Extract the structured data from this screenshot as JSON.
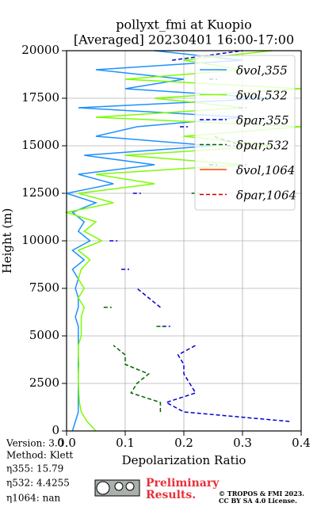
{
  "chart_data": {
    "type": "line",
    "title": "pollyxt_fmi at Kuopio",
    "subtitle": "[Averaged] 20230401 16:00-17:00",
    "x_label": "Depolarization Ratio",
    "y_label": "Height (m)",
    "xlim": [
      0,
      0.4
    ],
    "xticks": [
      {
        "value": 0,
        "label": "0.0"
      },
      0.1,
      0.2,
      0.3,
      0.4
    ],
    "ylim": [
      0,
      20000
    ],
    "yticks": [
      0,
      2500,
      5000,
      7500,
      10000,
      12500,
      15000,
      17500,
      20000
    ],
    "grid": true,
    "legend": "upper right",
    "heights": [
      0,
      500,
      1000,
      1500,
      2000,
      2500,
      3000,
      3500,
      4000,
      4500,
      5000,
      5500,
      6000,
      6500,
      7000,
      7500,
      8000,
      8500,
      9000,
      9500,
      10000,
      10500,
      11000,
      11500,
      12000,
      12500,
      13000,
      13500,
      14000,
      14500,
      15000,
      15500,
      16000,
      16500,
      17000,
      17500,
      18000,
      18500,
      19000,
      19500,
      20000
    ],
    "series": [
      {
        "name": "δvol,355",
        "color": "#1e90ff",
        "linestyle": "solid",
        "values": [
          0.01,
          0.015,
          0.02,
          0.02,
          0.02,
          0.02,
          0.02,
          0.02,
          0.02,
          0.02,
          0.02,
          0.02,
          0.015,
          0.02,
          0.02,
          0.015,
          0.02,
          0.01,
          0.03,
          0.01,
          0.04,
          0.02,
          0.03,
          0.01,
          0.05,
          0,
          0.08,
          0.02,
          0.15,
          0.03,
          0.25,
          0.05,
          0.12,
          0.3,
          0.02,
          0.35,
          0.1,
          0.2,
          0.05,
          0.3,
          0.15
        ]
      },
      {
        "name": "δvol,532",
        "color": "#7cfc00",
        "linestyle": "solid",
        "values": [
          0.05,
          0.035,
          0.025,
          0.022,
          0.021,
          0.02,
          0.02,
          0.021,
          0.02,
          0.02,
          0.025,
          0.025,
          0.025,
          0.03,
          0.02,
          0.03,
          0.02,
          0.025,
          0.04,
          0.02,
          0.06,
          0.03,
          0.05,
          0,
          0.08,
          0.02,
          0.15,
          0.05,
          0.3,
          0.1,
          0.35,
          0.2,
          0.4,
          0.05,
          0.3,
          0.15,
          0.4,
          0.1,
          0.3,
          0.2,
          0.35
        ]
      },
      {
        "name": "δpar,355",
        "color": "#0000cd",
        "linestyle": "dashed",
        "values": [
          null,
          0.38,
          0.2,
          0.17,
          0.22,
          0.21,
          0.2,
          0.2,
          0.19,
          0.22,
          null,
          0.17,
          null,
          0.16,
          0.14,
          0.12,
          null,
          0.1,
          null,
          null,
          0.08,
          null,
          null,
          null,
          null,
          0.12,
          null,
          null,
          0.25,
          null,
          0.28,
          null,
          0.2,
          null,
          null,
          0.3,
          null,
          0.25,
          null,
          0.18,
          0.3
        ]
      },
      {
        "name": "δpar,532",
        "color": "#006400",
        "linestyle": "dashed",
        "values": [
          null,
          null,
          0.16,
          0.16,
          0.11,
          0.12,
          0.14,
          0.1,
          0.1,
          0.08,
          null,
          0.16,
          null,
          0.07,
          null,
          null,
          null,
          null,
          null,
          null,
          null,
          null,
          null,
          null,
          null,
          0.22,
          null,
          null,
          0.3,
          null,
          0.3,
          0.25,
          null,
          null,
          0.3,
          null,
          null,
          0.25,
          null,
          null,
          null
        ]
      },
      {
        "name": "δvol,1064",
        "color": "#ff4500",
        "linestyle": "solid",
        "values": [
          null,
          null,
          null,
          null,
          null,
          null,
          null,
          null,
          null,
          null,
          null,
          null,
          null,
          null,
          null,
          null,
          null,
          null,
          null,
          null,
          null,
          null,
          null,
          null,
          null,
          null,
          null,
          null,
          null,
          null,
          null,
          null,
          null,
          null,
          null,
          null,
          null,
          null,
          null,
          null,
          null
        ]
      },
      {
        "name": "δpar,1064",
        "color": "#cc0000",
        "linestyle": "dashed",
        "values": [
          null,
          null,
          null,
          null,
          null,
          null,
          null,
          null,
          null,
          null,
          null,
          null,
          null,
          null,
          null,
          null,
          null,
          null,
          null,
          null,
          null,
          null,
          null,
          null,
          null,
          null,
          null,
          null,
          null,
          null,
          null,
          null,
          null,
          null,
          null,
          null,
          null,
          null,
          null,
          null,
          null
        ]
      }
    ]
  },
  "info": {
    "version": "Version: 3.0",
    "method": "Method: Klett",
    "eta355": "η355:  15.79",
    "eta532": "η532: 4.4255",
    "eta1064": "η1064:    nan"
  },
  "footer": {
    "preliminary": "Preliminary",
    "results": "Results.",
    "copyright": "© TROPOS & FMI 2023.",
    "license": "CC BY SA 4.0 License."
  }
}
